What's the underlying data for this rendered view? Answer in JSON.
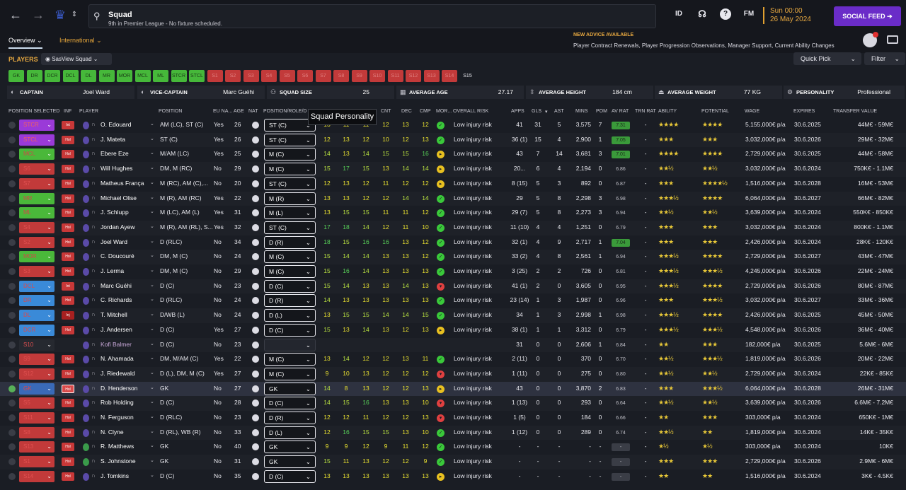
{
  "topbar": {
    "title": "Squad",
    "subtitle": "9th in Premier League - No fixture scheduled.",
    "id_label": "ID",
    "fm_label": "FM",
    "date_line1": "Sun 00:00",
    "date_line2": "26 May 2024",
    "social_feed": "SOCIAL FEED"
  },
  "tabs": {
    "overview": "Overview",
    "international": "International"
  },
  "advice": {
    "heading": "NEW ADVICE AVAILABLE",
    "text": "Player Contract Renewals, Player Progression Observations, Manager Support, Current Ability Changes"
  },
  "toolbar": {
    "players": "PLAYERS",
    "view": "SasView Squad",
    "quick_pick": "Quick Pick",
    "filter": "Filter"
  },
  "slots": [
    {
      "label": "GK",
      "state": "full"
    },
    {
      "label": "DR",
      "state": "full"
    },
    {
      "label": "DCR",
      "state": "full"
    },
    {
      "label": "DCL",
      "state": "full"
    },
    {
      "label": "DL",
      "state": "full"
    },
    {
      "label": "MR",
      "state": "full"
    },
    {
      "label": "MOR",
      "state": "full"
    },
    {
      "label": "MCL",
      "state": "full"
    },
    {
      "label": "ML",
      "state": "full"
    },
    {
      "label": "STCR",
      "state": "full"
    },
    {
      "label": "STCL",
      "state": "full"
    },
    {
      "label": "S1",
      "state": "empty"
    },
    {
      "label": "S2",
      "state": "empty"
    },
    {
      "label": "S3",
      "state": "empty"
    },
    {
      "label": "S4",
      "state": "empty"
    },
    {
      "label": "S5",
      "state": "empty"
    },
    {
      "label": "S6",
      "state": "empty"
    },
    {
      "label": "S7",
      "state": "empty"
    },
    {
      "label": "S8",
      "state": "empty"
    },
    {
      "label": "S9",
      "state": "empty"
    },
    {
      "label": "S10",
      "state": "empty"
    },
    {
      "label": "S11",
      "state": "empty"
    },
    {
      "label": "S12",
      "state": "empty"
    },
    {
      "label": "S13",
      "state": "empty"
    },
    {
      "label": "S14",
      "state": "empty"
    },
    {
      "label": "S15",
      "state": "last"
    }
  ],
  "info": {
    "captain_label": "CAPTAIN",
    "captain": "Joel Ward",
    "vice_label": "VICE-CAPTAIN",
    "vice": "Marc Guéhi",
    "size_label": "SQUAD SIZE",
    "size": "25",
    "age_label": "AVERAGE AGE",
    "age": "27.17",
    "height_label": "AVERAGE HEIGHT",
    "height": "184 cm",
    "weight_label": "AVERAGE WEIGHT",
    "weight": "77 KG",
    "personality_label": "PERSONALITY",
    "personality": "Professional"
  },
  "headers": {
    "pos_sel": "POSITION SELECTED",
    "inf": "INF",
    "player": "PLAYER",
    "position": "POSITION",
    "eu": "EU NA...",
    "age": "AGE",
    "nat": "NAT",
    "role": "POSITION/ROLE/D",
    "cnt": "CNT",
    "dec": "DEC",
    "cmp": "CMP",
    "mor": "MOR...",
    "risk": "OVERALL RISK",
    "apps": "APPS",
    "gls": "GLS",
    "ast": "AST",
    "mins": "MINS",
    "pom": "POM",
    "avrat": "AV RAT",
    "trnrat": "TRN RAT",
    "ability": "ABILITY",
    "potential": "POTENTIAL",
    "wage": "WAGE",
    "expires": "EXPIRES",
    "tv": "TRANSFER VALUE"
  },
  "tooltip": "Squad Personality",
  "rows": [
    {
      "sel": "STCR",
      "selColor": "#9a3ad8",
      "inf": "Int",
      "name": "O. Edouard",
      "pos": "AM (LC), ST (C)",
      "eu": "Yes",
      "age": "26",
      "role": "ST (C)",
      "a": [
        "13",
        "11",
        "11",
        "12",
        "13",
        "12"
      ],
      "mor": "g",
      "risk": "Low injury risk",
      "apps": "41",
      "gls": "31",
      "ast": "5",
      "mins": "3,575",
      "pom": "7",
      "avr": "7.31",
      "trn": "-",
      "abl": "★★★★",
      "pot": "★★★★",
      "wage": "5,155,000€ p/a",
      "exp": "30.6.2025",
      "tv": "44M€ - 59M€"
    },
    {
      "sel": "STCL",
      "selColor": "#9a3ad8",
      "inf": "Hol",
      "name": "J. Mateta",
      "pos": "ST (C)",
      "eu": "Yes",
      "age": "26",
      "role": "ST (C)",
      "a": [
        "12",
        "13",
        "12",
        "10",
        "12",
        "13"
      ],
      "mor": "g",
      "risk": "Low injury risk",
      "apps": "36 (1)",
      "gls": "15",
      "ast": "4",
      "mins": "2,900",
      "pom": "1",
      "avr": "7.05",
      "trn": "-",
      "abl": "★★★",
      "pot": "★★★",
      "wage": "3,032,000€ p/a",
      "exp": "30.6.2026",
      "tv": "29M€ - 32M€"
    },
    {
      "sel": "MCL",
      "selColor": "#4ab83a",
      "inf": "Hol",
      "name": "Ebere Eze",
      "pos": "M/AM (LC)",
      "eu": "Yes",
      "age": "25",
      "role": "M (C)",
      "a": [
        "14",
        "13",
        "14",
        "15",
        "15",
        "16"
      ],
      "mor": "y",
      "risk": "Low injury risk",
      "apps": "43",
      "gls": "7",
      "ast": "14",
      "mins": "3,681",
      "pom": "3",
      "avr": "7.01",
      "trn": "-",
      "abl": "★★★★",
      "pot": "★★★★",
      "wage": "2,729,000€ p/a",
      "exp": "30.6.2025",
      "tv": "44M€ - 58M€"
    },
    {
      "sel": "S6",
      "selColor": "#c23a3a",
      "inf": "Hol",
      "name": "Will Hughes",
      "pos": "DM, M (RC)",
      "eu": "No",
      "age": "29",
      "role": "M (C)",
      "a": [
        "15",
        "17",
        "15",
        "13",
        "14",
        "14"
      ],
      "mor": "y",
      "risk": "Low injury risk",
      "apps": "20...",
      "gls": "6",
      "ast": "4",
      "mins": "2,194",
      "pom": "0",
      "avr": "6.86",
      "trn": "-",
      "abl": "★★½",
      "pot": "★★½",
      "wage": "3,032,000€ p/a",
      "exp": "30.6.2024",
      "tv": "750K€ - 1.1M€"
    },
    {
      "sel": "S7",
      "selColor": "#c23a3a",
      "inf": "Hol",
      "name": "Matheus França",
      "pos": "M (RC), AM (C),...",
      "eu": "No",
      "age": "20",
      "role": "ST (C)",
      "a": [
        "12",
        "13",
        "12",
        "11",
        "12",
        "12"
      ],
      "mor": "y",
      "risk": "Low injury risk",
      "apps": "8 (15)",
      "gls": "5",
      "ast": "3",
      "mins": "892",
      "pom": "0",
      "avr": "6.87",
      "trn": "-",
      "abl": "★★★",
      "pot": "★★★★½",
      "wage": "1,516,000€ p/a",
      "exp": "30.6.2028",
      "tv": "16M€ - 53M€"
    },
    {
      "sel": "MR",
      "selColor": "#4ab83a",
      "inf": "Hol",
      "name": "Michael Olise",
      "pos": "M (R), AM (RC)",
      "eu": "Yes",
      "age": "22",
      "role": "M (R)",
      "a": [
        "13",
        "13",
        "12",
        "12",
        "14",
        "14"
      ],
      "mor": "g",
      "risk": "Low injury risk",
      "apps": "29",
      "gls": "5",
      "ast": "8",
      "mins": "2,298",
      "pom": "3",
      "avr": "6.98",
      "trn": "-",
      "abl": "★★★½",
      "pot": "★★★★",
      "wage": "6,064,000€ p/a",
      "exp": "30.6.2027",
      "tv": "66M€ - 82M€"
    },
    {
      "sel": "ML",
      "selColor": "#4ab83a",
      "inf": "Hol",
      "name": "J. Schlupp",
      "pos": "M (LC), AM (L)",
      "eu": "Yes",
      "age": "31",
      "role": "M (L)",
      "a": [
        "13",
        "15",
        "15",
        "11",
        "11",
        "12"
      ],
      "mor": "g",
      "risk": "Low injury risk",
      "apps": "29 (7)",
      "gls": "5",
      "ast": "8",
      "mins": "2,273",
      "pom": "3",
      "avr": "6.94",
      "trn": "-",
      "abl": "★★½",
      "pot": "★★½",
      "wage": "3,639,000€ p/a",
      "exp": "30.6.2024",
      "tv": "550K€ - 850K€"
    },
    {
      "sel": "S4",
      "selColor": "#c23a3a",
      "inf": "Hol",
      "name": "Jordan Ayew",
      "pos": "M (R), AM (RL), S...",
      "eu": "Yes",
      "age": "32",
      "role": "ST (C)",
      "a": [
        "17",
        "18",
        "14",
        "12",
        "11",
        "10"
      ],
      "mor": "g",
      "risk": "Low injury risk",
      "apps": "11 (10)",
      "gls": "4",
      "ast": "4",
      "mins": "1,251",
      "pom": "0",
      "avr": "6.79",
      "trn": "-",
      "abl": "★★★",
      "pot": "★★★",
      "wage": "3,032,000€ p/a",
      "exp": "30.6.2024",
      "tv": "800K€ - 1.1M€"
    },
    {
      "sel": "S2",
      "selColor": "#c23a3a",
      "inf": "Hol",
      "name": "Joel Ward",
      "pos": "D (RLC)",
      "eu": "No",
      "age": "34",
      "role": "D (R)",
      "a": [
        "18",
        "15",
        "16",
        "16",
        "13",
        "12"
      ],
      "mor": "g",
      "risk": "Low injury risk",
      "apps": "32 (1)",
      "gls": "4",
      "ast": "9",
      "mins": "2,717",
      "pom": "1",
      "avr": "7.04",
      "trn": "-",
      "abl": "★★★",
      "pot": "★★★",
      "wage": "2,426,000€ p/a",
      "exp": "30.6.2024",
      "tv": "28K€ - 120K€"
    },
    {
      "sel": "MOR",
      "selColor": "#4ab83a",
      "inf": "Hol",
      "name": "C. Doucouré",
      "pos": "DM, M (C)",
      "eu": "No",
      "age": "24",
      "role": "M (C)",
      "a": [
        "15",
        "14",
        "14",
        "13",
        "13",
        "12"
      ],
      "mor": "g",
      "risk": "Low injury risk",
      "apps": "33 (2)",
      "gls": "4",
      "ast": "8",
      "mins": "2,561",
      "pom": "1",
      "avr": "6.94",
      "trn": "-",
      "abl": "★★★½",
      "pot": "★★★★",
      "wage": "2,729,000€ p/a",
      "exp": "30.6.2027",
      "tv": "43M€ - 47M€"
    },
    {
      "sel": "S3",
      "selColor": "#c23a3a",
      "inf": "Hol",
      "name": "J. Lerma",
      "pos": "DM, M (C)",
      "eu": "No",
      "age": "29",
      "role": "M (C)",
      "a": [
        "15",
        "16",
        "14",
        "13",
        "13",
        "13"
      ],
      "mor": "g",
      "risk": "Low injury risk",
      "apps": "3 (25)",
      "gls": "2",
      "ast": "2",
      "mins": "726",
      "pom": "0",
      "avr": "6.81",
      "trn": "-",
      "abl": "★★★½",
      "pot": "★★★½",
      "wage": "4,245,000€ p/a",
      "exp": "30.6.2026",
      "tv": "22M€ - 24M€"
    },
    {
      "sel": "DCL",
      "selColor": "#3a8ad8",
      "inf": "Int",
      "name": "Marc Guéhi",
      "pos": "D (C)",
      "eu": "No",
      "age": "23",
      "role": "D (C)",
      "a": [
        "15",
        "14",
        "13",
        "13",
        "14",
        "13"
      ],
      "mor": "r",
      "risk": "Low injury risk",
      "apps": "41 (1)",
      "gls": "2",
      "ast": "0",
      "mins": "3,605",
      "pom": "0",
      "avr": "6.95",
      "trn": "-",
      "abl": "★★★½",
      "pot": "★★★★",
      "wage": "2,729,000€ p/a",
      "exp": "30.6.2026",
      "tv": "80M€ - 87M€"
    },
    {
      "sel": "DR",
      "selColor": "#3a8ad8",
      "inf": "Hol",
      "name": "C. Richards",
      "pos": "D (RLC)",
      "eu": "No",
      "age": "24",
      "role": "D (R)",
      "a": [
        "14",
        "13",
        "13",
        "13",
        "13",
        "13"
      ],
      "mor": "g",
      "risk": "Low injury risk",
      "apps": "23 (14)",
      "gls": "1",
      "ast": "3",
      "mins": "1,987",
      "pom": "0",
      "avr": "6.96",
      "trn": "-",
      "abl": "★★★",
      "pot": "★★★½",
      "wage": "3,032,000€ p/a",
      "exp": "30.6.2027",
      "tv": "33M€ - 36M€"
    },
    {
      "sel": "DL",
      "selColor": "#3a8ad8",
      "inf": "Inj",
      "name": "T. Mitchell",
      "pos": "D/WB (L)",
      "eu": "No",
      "age": "24",
      "role": "D (L)",
      "a": [
        "13",
        "15",
        "15",
        "14",
        "14",
        "15"
      ],
      "mor": "g",
      "risk": "Low injury risk",
      "apps": "34",
      "gls": "1",
      "ast": "3",
      "mins": "2,998",
      "pom": "1",
      "avr": "6.98",
      "trn": "-",
      "abl": "★★★½",
      "pot": "★★★★",
      "wage": "2,426,000€ p/a",
      "exp": "30.6.2025",
      "tv": "45M€ - 50M€"
    },
    {
      "sel": "DCR",
      "selColor": "#3a8ad8",
      "inf": "Hol",
      "name": "J. Andersen",
      "pos": "D (C)",
      "eu": "Yes",
      "age": "27",
      "role": "D (C)",
      "a": [
        "15",
        "13",
        "14",
        "13",
        "12",
        "13"
      ],
      "mor": "y",
      "risk": "Low injury risk",
      "apps": "38 (1)",
      "gls": "1",
      "ast": "1",
      "mins": "3,312",
      "pom": "0",
      "avr": "6.79",
      "trn": "-",
      "abl": "★★★½",
      "pot": "★★★½",
      "wage": "4,548,000€ p/a",
      "exp": "30.6.2026",
      "tv": "36M€ - 40M€"
    },
    {
      "sel": "S10",
      "selColor": "#262930",
      "inf": "",
      "name": "Kofi Balmer",
      "dim": true,
      "pos": "D (C)",
      "eu": "No",
      "age": "23",
      "role": "",
      "a": [
        "",
        "",
        "",
        "",
        "",
        ""
      ],
      "mor": "",
      "risk": "",
      "apps": "31",
      "gls": "0",
      "ast": "0",
      "mins": "2,606",
      "pom": "1",
      "avr": "6.84",
      "trn": "-",
      "abl": "★★",
      "pot": "★★★",
      "wage": "182,000€ p/a",
      "exp": "30.6.2025",
      "tv": "5.6M€ - 6M€"
    },
    {
      "sel": "S9",
      "selColor": "#c23a3a",
      "inf": "Hol",
      "name": "N. Ahamada",
      "pos": "DM, M/AM (C)",
      "eu": "Yes",
      "age": "22",
      "role": "M (C)",
      "a": [
        "13",
        "14",
        "12",
        "12",
        "13",
        "11"
      ],
      "mor": "g",
      "risk": "Low injury risk",
      "apps": "2 (11)",
      "gls": "0",
      "ast": "0",
      "mins": "370",
      "pom": "0",
      "avr": "6.70",
      "trn": "-",
      "abl": "★★½",
      "pot": "★★★½",
      "wage": "1,819,000€ p/a",
      "exp": "30.6.2026",
      "tv": "20M€ - 22M€"
    },
    {
      "sel": "S12",
      "selColor": "#c23a3a",
      "inf": "Hol",
      "name": "J. Riedewald",
      "pos": "D (L), DM, M (C)",
      "eu": "Yes",
      "age": "27",
      "role": "M (C)",
      "a": [
        "9",
        "10",
        "13",
        "12",
        "12",
        "12"
      ],
      "mor": "r",
      "risk": "Low injury risk",
      "apps": "1 (11)",
      "gls": "0",
      "ast": "0",
      "mins": "275",
      "pom": "0",
      "avr": "6.80",
      "trn": "-",
      "abl": "★★½",
      "pot": "★★½",
      "wage": "2,729,000€ p/a",
      "exp": "30.6.2024",
      "tv": "22K€ - 85K€"
    },
    {
      "sel": "GK",
      "selColor": "#3a6ab8",
      "inf": "Hol",
      "name": "D. Henderson",
      "selected": true,
      "pos": "GK",
      "eu": "No",
      "age": "27",
      "role": "GK",
      "a": [
        "14",
        "8",
        "13",
        "12",
        "12",
        "13"
      ],
      "mor": "y",
      "risk": "Low injury risk",
      "apps": "43",
      "gls": "0",
      "ast": "0",
      "mins": "3,870",
      "pom": "2",
      "avr": "6.83",
      "trn": "-",
      "abl": "★★★",
      "pot": "★★★½",
      "wage": "6,064,000€ p/a",
      "exp": "30.6.2028",
      "tv": "26M€ - 31M€"
    },
    {
      "sel": "S5",
      "selColor": "#c23a3a",
      "inf": "Hol",
      "name": "Rob Holding",
      "pos": "D (C)",
      "eu": "No",
      "age": "28",
      "role": "D (C)",
      "a": [
        "14",
        "15",
        "16",
        "13",
        "13",
        "10"
      ],
      "mor": "r",
      "risk": "Low injury risk",
      "apps": "1 (13)",
      "gls": "0",
      "ast": "0",
      "mins": "293",
      "pom": "0",
      "avr": "6.64",
      "trn": "-",
      "abl": "★★½",
      "pot": "★★½",
      "wage": "3,639,000€ p/a",
      "exp": "30.6.2026",
      "tv": "6.6M€ - 7.2M€"
    },
    {
      "sel": "S11",
      "selColor": "#c23a3a",
      "inf": "Hol",
      "name": "N. Ferguson",
      "pos": "D (RLC)",
      "eu": "No",
      "age": "23",
      "role": "D (R)",
      "a": [
        "12",
        "12",
        "11",
        "12",
        "12",
        "13"
      ],
      "mor": "r",
      "risk": "Low injury risk",
      "apps": "1 (5)",
      "gls": "0",
      "ast": "0",
      "mins": "184",
      "pom": "0",
      "avr": "6.66",
      "trn": "-",
      "abl": "★★",
      "pot": "★★★",
      "wage": "303,000€ p/a",
      "exp": "30.6.2024",
      "tv": "650K€ - 1M€"
    },
    {
      "sel": "S8",
      "selColor": "#c23a3a",
      "inf": "Hol",
      "name": "N. Clyne",
      "pos": "D (RL), WB (R)",
      "eu": "No",
      "age": "33",
      "role": "D (L)",
      "a": [
        "12",
        "16",
        "15",
        "15",
        "13",
        "10"
      ],
      "mor": "g",
      "risk": "Low injury risk",
      "apps": "1 (12)",
      "gls": "0",
      "ast": "0",
      "mins": "289",
      "pom": "0",
      "avr": "6.74",
      "trn": "-",
      "abl": "★★½",
      "pot": "★★",
      "wage": "1,819,000€ p/a",
      "exp": "30.6.2024",
      "tv": "14K€ - 35K€"
    },
    {
      "sel": "S13",
      "selColor": "#c23a3a",
      "inf": "Hol",
      "name": "R. Matthews",
      "badge": "green",
      "pos": "GK",
      "eu": "No",
      "age": "40",
      "role": "GK",
      "a": [
        "9",
        "9",
        "12",
        "9",
        "11",
        "12"
      ],
      "mor": "g",
      "risk": "Low injury risk",
      "apps": "-",
      "gls": "-",
      "ast": "-",
      "mins": "-",
      "pom": "-",
      "avr": "-",
      "trn": "-",
      "abl": "★½",
      "pot": "★½",
      "wage": "303,000€ p/a",
      "exp": "30.6.2024",
      "tv": "10K€"
    },
    {
      "sel": "S1",
      "selColor": "#c23a3a",
      "inf": "Hol",
      "name": "S. Johnstone",
      "badge": "green",
      "pos": "GK",
      "eu": "No",
      "age": "31",
      "role": "GK",
      "a": [
        "15",
        "11",
        "13",
        "12",
        "12",
        "9"
      ],
      "mor": "g",
      "risk": "Low injury risk",
      "apps": "-",
      "gls": "-",
      "ast": "-",
      "mins": "-",
      "pom": "-",
      "avr": "-",
      "trn": "-",
      "abl": "★★★",
      "pot": "★★★",
      "wage": "2,729,000€ p/a",
      "exp": "30.6.2026",
      "tv": "2.9M€ - 6M€"
    },
    {
      "sel": "S14",
      "selColor": "#c23a3a",
      "inf": "Hol",
      "name": "J. Tomkins",
      "pos": "D (C)",
      "eu": "No",
      "age": "35",
      "role": "D (C)",
      "a": [
        "13",
        "13",
        "13",
        "13",
        "13",
        "13"
      ],
      "mor": "y",
      "risk": "Low injury risk",
      "apps": "-",
      "gls": "-",
      "ast": "-",
      "mins": "-",
      "pom": "-",
      "avr": "-",
      "trn": "-",
      "abl": "★★",
      "pot": "★★",
      "wage": "1,516,000€ p/a",
      "exp": "30.6.2024",
      "tv": "3K€ - 4.5K€"
    }
  ]
}
